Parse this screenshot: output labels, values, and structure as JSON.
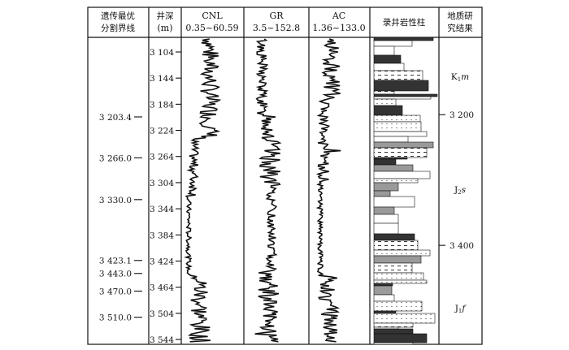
{
  "headers": {
    "boundary_col": [
      "遗传最优",
      "分割界线"
    ],
    "depth_col": [
      "井深",
      "(m)"
    ],
    "cnl": {
      "name": "CNL",
      "range": "0.35~60.59"
    },
    "gr": {
      "name": "GR",
      "range": "3.5~152.8"
    },
    "ac": {
      "name": "AC",
      "range": "1.36~133.0"
    },
    "lith_col": "录井岩性柱",
    "result_col": [
      "地质研",
      "究结果"
    ]
  },
  "depth_ticks": [
    "3 104",
    "3 144",
    "3 184",
    "3 224",
    "3 264",
    "3 304",
    "3 344",
    "3 384",
    "3 424",
    "3 464",
    "3 504",
    "3 544"
  ],
  "boundaries": [
    "3 203.4",
    "3 266.0",
    "3 330.0",
    "3 423.1",
    "3 443.0",
    "3 470.0",
    "3 510.0"
  ],
  "result_ticks": [
    "3 200",
    "3 400"
  ],
  "formations": [
    {
      "main": "K",
      "sub": "1",
      "suffix": "m"
    },
    {
      "main": "J",
      "sub": "2",
      "suffix": "s"
    },
    {
      "main": "J",
      "sub": "1",
      "suffix": "f"
    }
  ],
  "colors": {
    "ink": "#111111",
    "lith_dark": "#333333",
    "lith_gray": "#9a9a9a"
  }
}
